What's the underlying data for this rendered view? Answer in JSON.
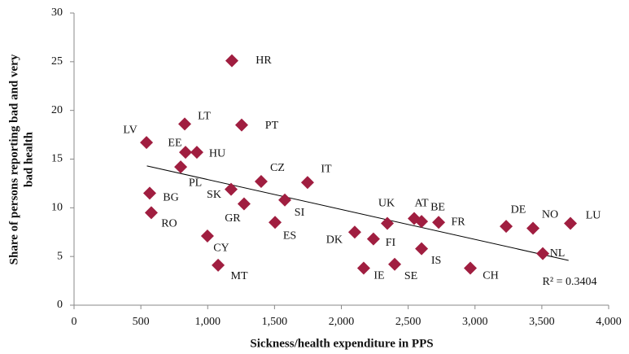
{
  "chart_data": {
    "type": "scatter",
    "x_label": "Sickness/health expenditure in PPS",
    "y_label": [
      "Share of persons reporting bad and very",
      "bad health"
    ],
    "annotation": "R² = 0.3404",
    "color": "#a01e40",
    "labels": [
      "HR",
      "LV",
      "LT",
      "PT",
      "EE",
      "HU",
      "PL",
      "CZ",
      "IT",
      "SK",
      "BG",
      "GR",
      "SI",
      "RO",
      "ES",
      "CY",
      "MT",
      "DK",
      "FI",
      "IE",
      "SE",
      "UK",
      "AT",
      "BE",
      "FR",
      "IS",
      "CH",
      "DE",
      "NO",
      "NL",
      "LU"
    ],
    "x": [
      1181,
      542,
      828,
      1254,
      834,
      919,
      798,
      1400,
      1747,
      1175,
      566,
      1272,
      1577,
      578,
      1504,
      998,
      1078,
      2100,
      2240,
      2167,
      2399,
      2344,
      2545,
      2600,
      2728,
      2600,
      2965,
      3233,
      3434,
      3507,
      3714
    ],
    "y": [
      25.1,
      16.7,
      18.6,
      18.5,
      15.7,
      15.7,
      14.2,
      12.7,
      12.6,
      11.9,
      11.5,
      10.4,
      10.8,
      9.5,
      8.5,
      7.1,
      4.1,
      7.5,
      6.8,
      3.8,
      4.2,
      8.4,
      8.9,
      8.6,
      8.5,
      5.8,
      3.8,
      8.1,
      7.9,
      5.3,
      8.4
    ],
    "trendline": {
      "x": [
        545,
        3700
      ],
      "y": [
        14.3,
        4.6
      ]
    },
    "xlim": [
      0,
      4000
    ],
    "xticks": [
      0,
      500,
      {
        "value": 1000,
        "label": "1,000"
      },
      {
        "value": 1500,
        "label": "1,500"
      },
      {
        "value": 2000,
        "label": "2,000"
      },
      {
        "value": 2500,
        "label": "2,500"
      },
      {
        "value": 3000,
        "label": "3,000"
      },
      {
        "value": 3500,
        "label": "3,500"
      },
      {
        "value": 4000,
        "label": "4,000"
      }
    ],
    "ylim": [
      0,
      30
    ],
    "yticks": [
      0,
      5,
      10,
      15,
      20,
      25,
      30
    ]
  }
}
